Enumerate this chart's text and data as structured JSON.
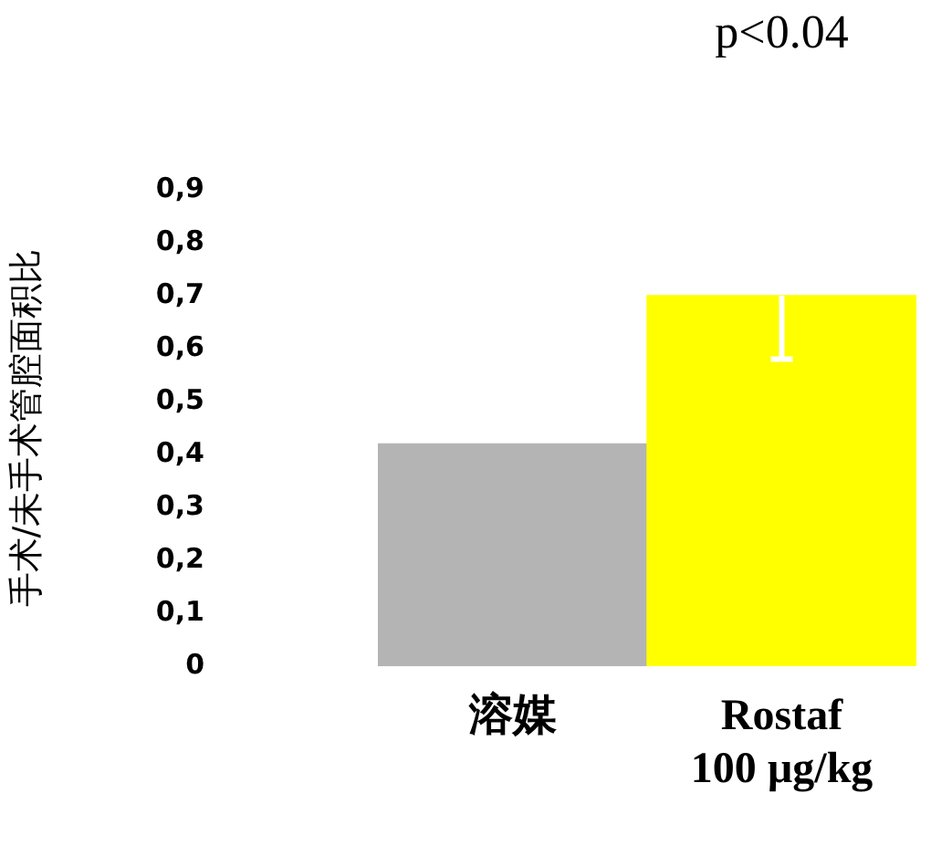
{
  "chart_data": {
    "type": "bar",
    "ylabel": "手术/未手术管腔面积比",
    "categories": [
      "溶媒",
      "Rostaf\n100 µg/kg"
    ],
    "values": [
      0.42,
      0.7
    ],
    "colors": [
      "#b4b4b4",
      "#ffff00"
    ],
    "errors": [
      null,
      [
        0.58,
        0.7
      ]
    ],
    "ylim": [
      0,
      0.9
    ],
    "yticks": [
      0,
      {
        "value": 0.1,
        "label": "0,1"
      },
      {
        "value": 0.2,
        "label": "0,2"
      },
      {
        "value": 0.3,
        "label": "0,3"
      },
      {
        "value": 0.4,
        "label": "0,4"
      },
      {
        "value": 0.5,
        "label": "0,5"
      },
      {
        "value": 0.6,
        "label": "0,6"
      },
      {
        "value": 0.7,
        "label": "0,7"
      },
      {
        "value": 0.8,
        "label": "0,8"
      },
      {
        "value": 0.9,
        "label": "0,9"
      }
    ],
    "annotations": [
      "p<0.04"
    ],
    "grid": false,
    "legend": false
  }
}
